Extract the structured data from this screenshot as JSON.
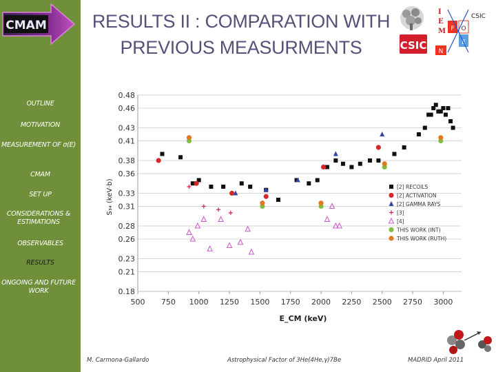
{
  "sidebar": {
    "logo_text": "CMAM",
    "items": [
      {
        "label": "OUTLINE"
      },
      {
        "label": "MOTIVATION"
      },
      {
        "label": "MEASUREMENT OF σ(E)"
      },
      {
        "label": "CMAM"
      },
      {
        "label": "SET UP"
      },
      {
        "label": "CONSIDERATIONS & ESTIMATIONS"
      },
      {
        "label": "OBSERVABLES"
      },
      {
        "label": "RESULTS"
      },
      {
        "label": "ONGOING AND FUTURE WORK"
      }
    ],
    "colors": {
      "background": "#6f8f3a",
      "text": "#ffffff",
      "active_text": "#1a1a1a"
    }
  },
  "header": {
    "title_line1": "RESULTS II : COMPARATION  WITH",
    "title_line2": "PREVIOUS MEASURMENTS",
    "title_color": "#5a4f78",
    "csic_logo_text": "CSIC",
    "iem_letters": [
      "I",
      "E",
      "M"
    ],
    "institute_letters": [
      "F",
      "O",
      "E",
      "N"
    ]
  },
  "chart_data": {
    "type": "scatter",
    "ylabel": "S₃₄ (keV·b)",
    "xlabel": "E_CM (keV)",
    "y_ticks": [
      0.18,
      0.21,
      0.23,
      0.26,
      0.28,
      0.31,
      0.33,
      0.36,
      0.38,
      0.41,
      0.43,
      0.46,
      0.48
    ],
    "x_ticks": [
      500,
      750,
      1000,
      1250,
      1500,
      1750,
      2000,
      2250,
      2500,
      2750,
      3000
    ],
    "xlim": [
      500,
      3150
    ],
    "ylim": [
      0.18,
      0.48
    ],
    "grid": true,
    "legend_position": "right",
    "series": [
      {
        "name": "[2] RECOILS",
        "marker": "square",
        "color": "#111111",
        "x": [
          700,
          850,
          950,
          1000,
          1100,
          1200,
          1350,
          1420,
          1550,
          1650,
          1800,
          1900,
          1970,
          2050,
          2120,
          2180,
          2250,
          2320,
          2400,
          2470,
          2600,
          2680,
          2800,
          2850,
          2880,
          2900,
          2920,
          2940,
          2960,
          2980,
          3000,
          3020,
          3040,
          3060,
          3080
        ],
        "y": [
          0.39,
          0.385,
          0.345,
          0.35,
          0.34,
          0.34,
          0.345,
          0.34,
          0.335,
          0.32,
          0.35,
          0.345,
          0.35,
          0.37,
          0.38,
          0.375,
          0.37,
          0.375,
          0.38,
          0.38,
          0.39,
          0.4,
          0.42,
          0.43,
          0.45,
          0.45,
          0.46,
          0.465,
          0.455,
          0.455,
          0.46,
          0.45,
          0.46,
          0.44,
          0.43
        ]
      },
      {
        "name": "[2] ACTIVATION",
        "marker": "circle",
        "color": "#d62728",
        "x": [
          670,
          980,
          1270,
          1550,
          2020,
          2470
        ],
        "y": [
          0.38,
          0.345,
          0.33,
          0.325,
          0.37,
          0.4
        ]
      },
      {
        "name": "[2] GAMMA RAYS",
        "marker": "triangle",
        "color": "#3344aa",
        "x": [
          1300,
          1550,
          1810,
          2120,
          2500
        ],
        "y": [
          0.33,
          0.335,
          0.35,
          0.39,
          0.42
        ]
      },
      {
        "name": "[3]",
        "marker": "plus",
        "color": "#cc2255",
        "x": [
          920,
          1040,
          1160,
          1260
        ],
        "y": [
          0.34,
          0.31,
          0.305,
          0.3
        ]
      },
      {
        "name": "[4]",
        "marker": "open-triangle",
        "color": "#cc55cc",
        "x": [
          920,
          950,
          990,
          1040,
          1090,
          1180,
          1250,
          1340,
          1400,
          1430,
          2050,
          2090,
          2120,
          2150
        ],
        "y": [
          0.27,
          0.26,
          0.28,
          0.29,
          0.245,
          0.29,
          0.25,
          0.255,
          0.275,
          0.24,
          0.29,
          0.31,
          0.28,
          0.28
        ]
      },
      {
        "name": "THIS WORK (INT)",
        "marker": "circle",
        "color": "#7fbf3f",
        "x": [
          920,
          1520,
          2000,
          2520,
          2980
        ],
        "y": [
          0.41,
          0.31,
          0.31,
          0.37,
          0.41
        ]
      },
      {
        "name": "THIS WORK (RUTH)",
        "marker": "circle",
        "color": "#e07a20",
        "x": [
          920,
          1520,
          2000,
          2520,
          2980
        ],
        "y": [
          0.415,
          0.315,
          0.315,
          0.375,
          0.415
        ]
      }
    ]
  },
  "footer": {
    "author": "M. Carmona-Gallardo",
    "topic": "Astrophysical Factor of 3He(4He,γ)7Be",
    "place_date": "MADRID  April 2011"
  }
}
